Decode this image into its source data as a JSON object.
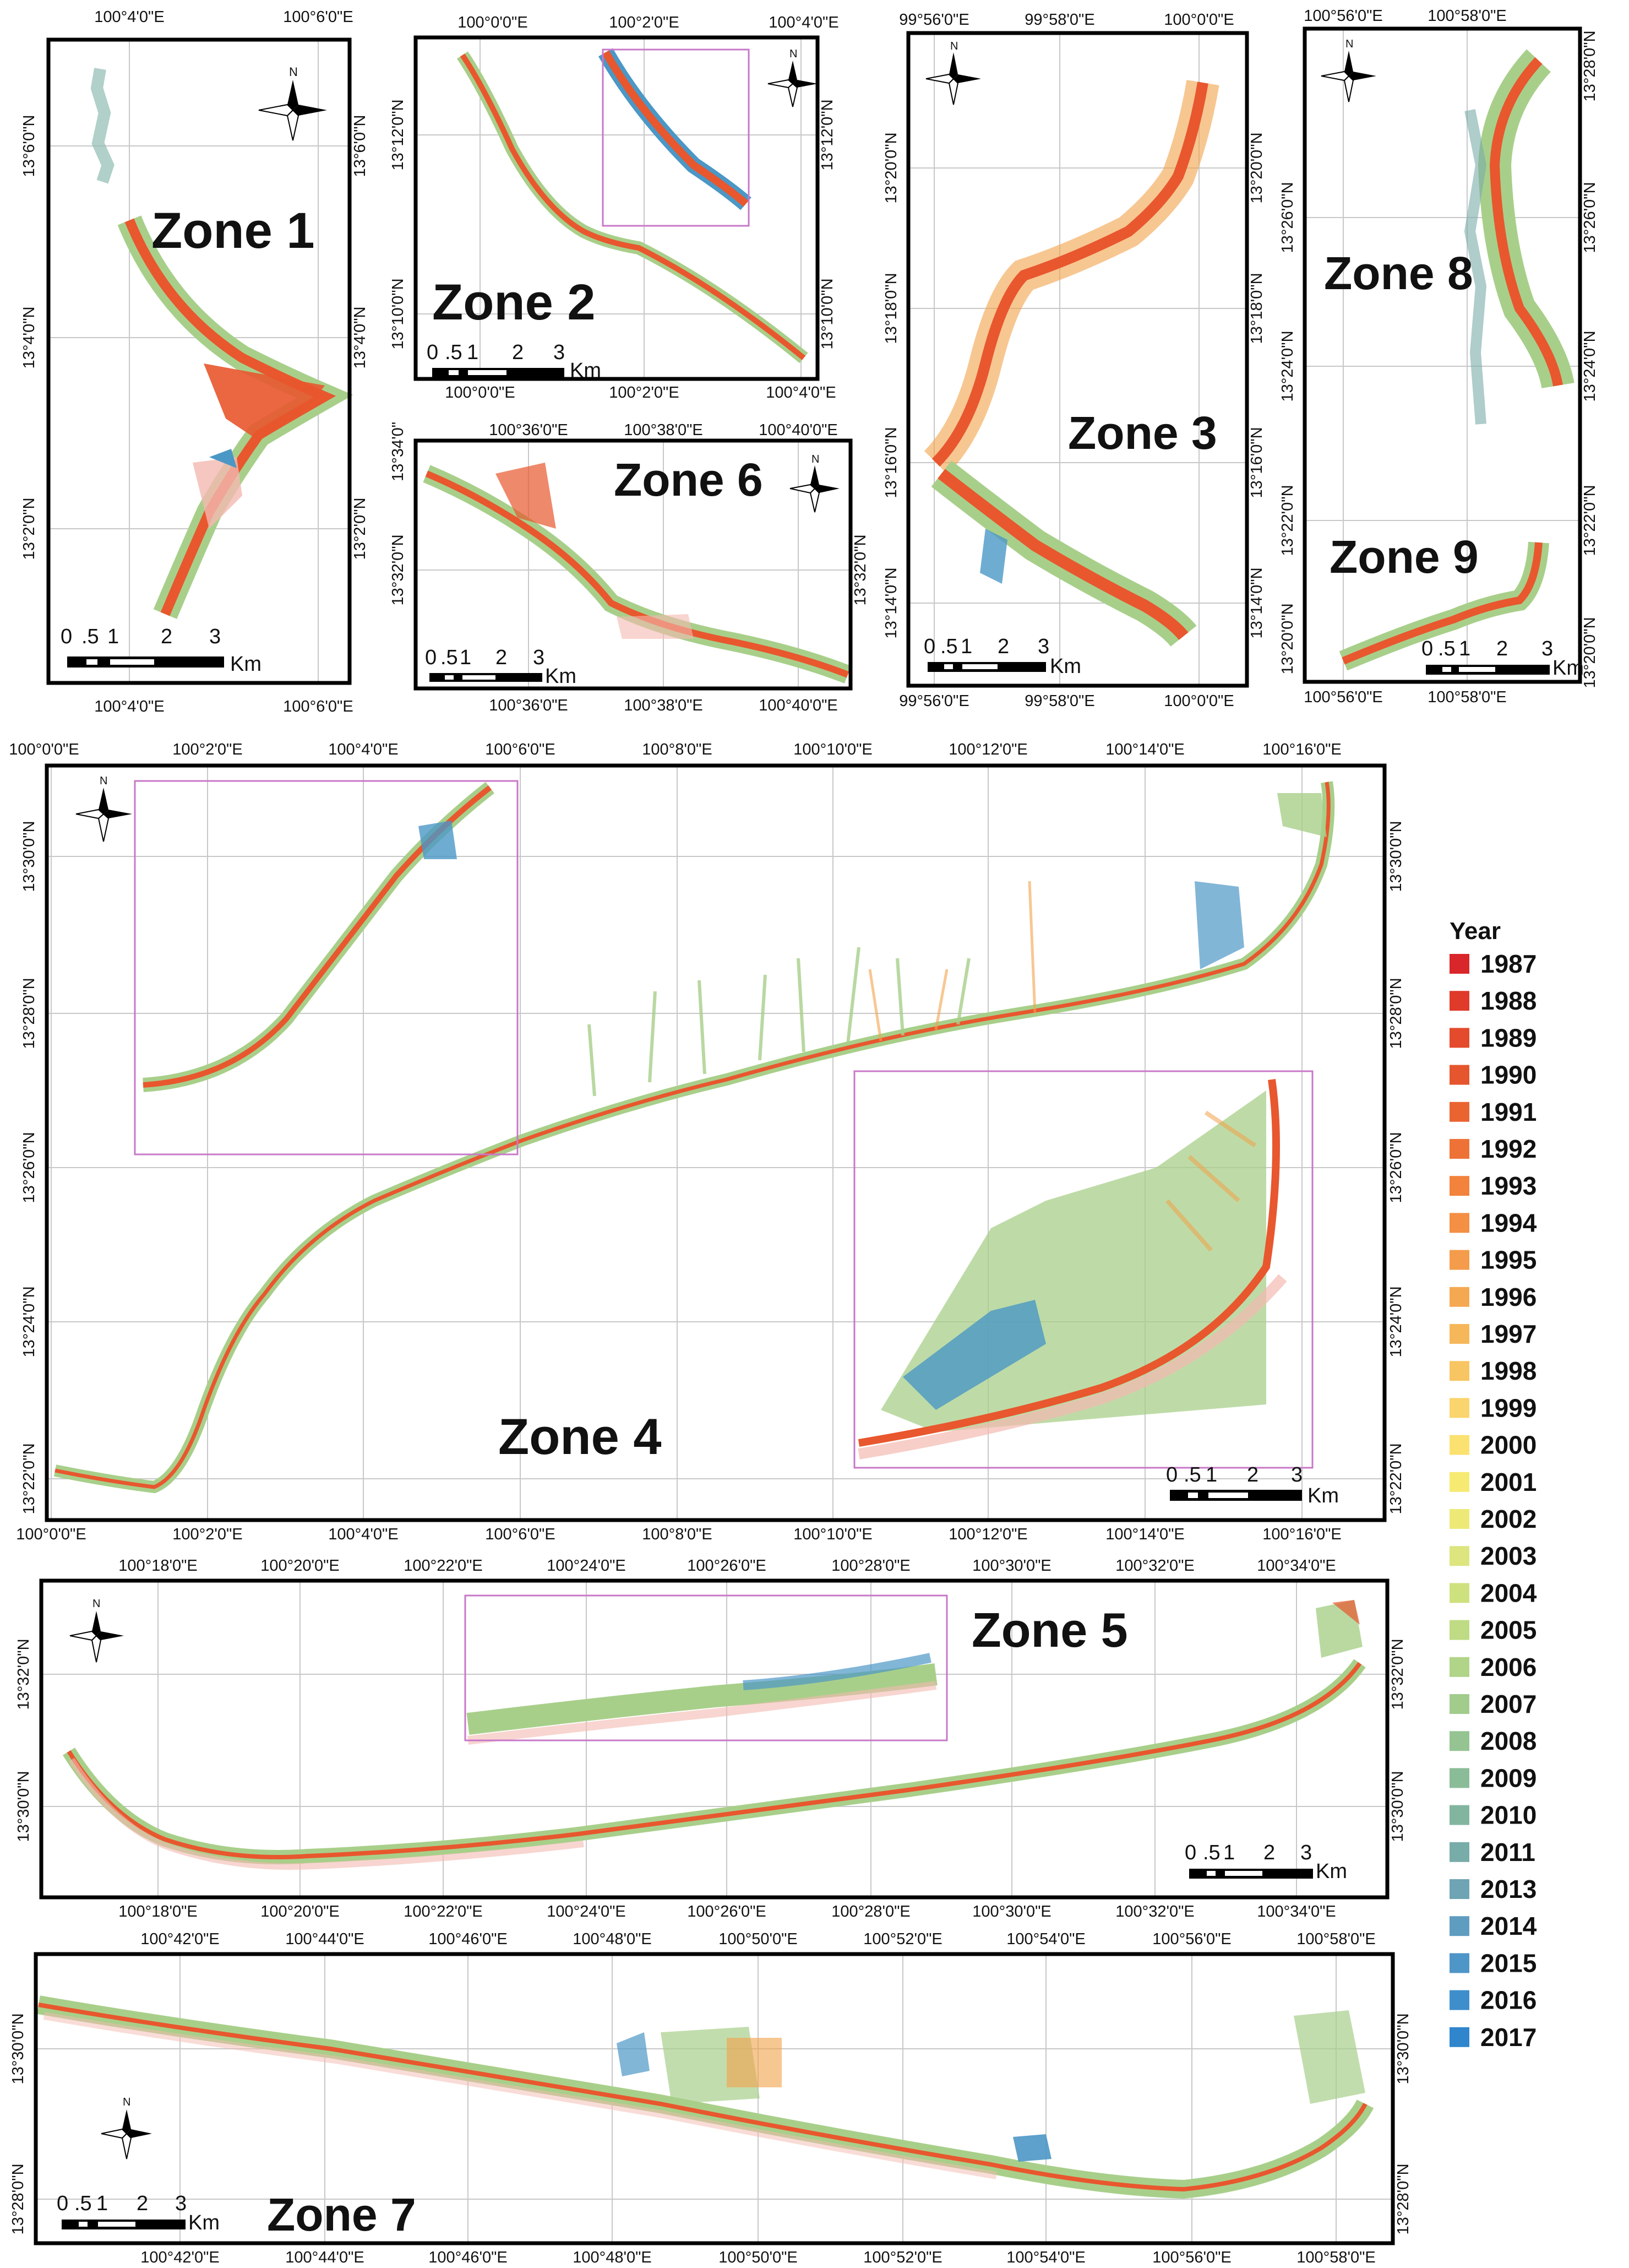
{
  "figure": {
    "panels": [
      {
        "id": "z1",
        "zone_label": "Zone 1",
        "top_ticks": [
          "100°4'0\"E",
          "100°6'0\"E"
        ],
        "bottom_ticks": [
          "100°4'0\"E",
          "100°6'0\"E"
        ],
        "left_ticks": [
          "13°6'0\"N",
          "13°4'0\"N",
          "13°2'0\"N"
        ],
        "right_ticks": [
          "13°6'0\"N",
          "13°4'0\"N",
          "13°2'0\"N"
        ],
        "scale": [
          "0",
          ".5",
          "1",
          "2",
          "3",
          "Km"
        ]
      },
      {
        "id": "z2",
        "zone_label": "Zone 2",
        "top_ticks": [
          "100°0'0\"E",
          "100°2'0\"E",
          "100°4'0\"E"
        ],
        "bottom_ticks": [
          "100°0'0\"E",
          "100°2'0\"E",
          "100°4'0\"E"
        ],
        "left_ticks": [
          "13°12'0\"N",
          "13°10'0\"N"
        ],
        "right_ticks": [
          "13°12'0\"N",
          "13°10'0\"N"
        ],
        "scale": [
          "0",
          ".5",
          "1",
          "2",
          "3",
          "Km"
        ]
      },
      {
        "id": "z6",
        "zone_label": "Zone 6",
        "top_ticks": [
          "100°36'0\"E",
          "100°38'0\"E",
          "100°40'0\"E"
        ],
        "bottom_ticks": [
          "100°36'0\"E",
          "100°38'0\"E",
          "100°40'0\"E"
        ],
        "left_ticks": [
          "13°34'0\"",
          "13°32'0\"N"
        ],
        "right_ticks": [
          "13°32'0\"N"
        ],
        "scale": [
          "0",
          ".5",
          "1",
          "2",
          "3",
          "Km"
        ]
      },
      {
        "id": "z3",
        "zone_label": "Zone 3",
        "top_ticks": [
          "99°56'0\"E",
          "99°58'0\"E",
          "100°0'0\"E"
        ],
        "bottom_ticks": [
          "99°56'0\"E",
          "99°58'0\"E",
          "100°0'0\"E"
        ],
        "left_ticks": [
          "13°20'0\"N",
          "13°18'0\"N",
          "13°16'0\"N",
          "13°14'0\"N"
        ],
        "right_ticks": [
          "13°20'0\"N",
          "13°18'0\"N",
          "13°16'0\"N",
          "13°14'0\"N"
        ],
        "scale": [
          "0",
          ".5",
          "1",
          "2",
          "3",
          "Km"
        ]
      },
      {
        "id": "z8",
        "zone_label": "Zone 8",
        "zone_label_b": "Zone 9",
        "top_ticks": [
          "100°56'0\"E",
          "100°58'0\"E"
        ],
        "bottom_ticks": [
          "100°56'0\"E",
          "100°58'0\"E"
        ],
        "left_ticks": [
          "13°26'0\"N",
          "13°24'0\"N",
          "13°22'0\"N",
          "13°20'0\"N"
        ],
        "right_ticks": [
          "13°28'0\"N",
          "13°26'0\"N",
          "13°24'0\"N",
          "13°22'0\"N",
          "13°20'0\"N"
        ],
        "scale": [
          "0",
          ".5",
          "1",
          "2",
          "3",
          "Km"
        ]
      },
      {
        "id": "z4",
        "zone_label": "Zone 4",
        "top_ticks": [
          "100°0'0\"E",
          "100°2'0\"E",
          "100°4'0\"E",
          "100°6'0\"E",
          "100°8'0\"E",
          "100°10'0\"E",
          "100°12'0\"E",
          "100°14'0\"E",
          "100°16'0\"E"
        ],
        "bottom_ticks": [
          "100°0'0\"E",
          "100°2'0\"E",
          "100°4'0\"E",
          "100°6'0\"E",
          "100°8'0\"E",
          "100°10'0\"E",
          "100°12'0\"E",
          "100°14'0\"E",
          "100°16'0\"E"
        ],
        "left_ticks": [
          "13°30'0\"N",
          "13°28'0\"N",
          "13°26'0\"N",
          "13°24'0\"N",
          "13°22'0\"N"
        ],
        "right_ticks": [
          "13°30'0\"N",
          "13°28'0\"N",
          "13°26'0\"N",
          "13°24'0\"N",
          "13°22'0\"N"
        ],
        "scale": [
          "0",
          ".5",
          "1",
          "2",
          "3",
          "Km"
        ]
      },
      {
        "id": "z5",
        "zone_label": "Zone 5",
        "top_ticks": [
          "100°18'0\"E",
          "100°20'0\"E",
          "100°22'0\"E",
          "100°24'0\"E",
          "100°26'0\"E",
          "100°28'0\"E",
          "100°30'0\"E",
          "100°32'0\"E",
          "100°34'0\"E"
        ],
        "bottom_ticks": [
          "100°18'0\"E",
          "100°20'0\"E",
          "100°22'0\"E",
          "100°24'0\"E",
          "100°26'0\"E",
          "100°28'0\"E",
          "100°30'0\"E",
          "100°32'0\"E",
          "100°34'0\"E"
        ],
        "left_ticks": [
          "13°32'0\"N",
          "13°30'0\"N"
        ],
        "right_ticks": [
          "13°32'0\"N",
          "13°30'0\"N"
        ],
        "scale": [
          "0",
          ".5",
          "1",
          "2",
          "3",
          "Km"
        ]
      },
      {
        "id": "z7",
        "zone_label": "Zone 7",
        "top_ticks": [
          "100°42'0\"E",
          "100°44'0\"E",
          "100°46'0\"E",
          "100°48'0\"E",
          "100°50'0\"E",
          "100°52'0\"E",
          "100°54'0\"E",
          "100°56'0\"E",
          "100°58'0\"E"
        ],
        "bottom_ticks": [
          "100°42'0\"E",
          "100°44'0\"E",
          "100°46'0\"E",
          "100°48'0\"E",
          "100°50'0\"E",
          "100°52'0\"E",
          "100°54'0\"E",
          "100°56'0\"E",
          "100°58'0\"E"
        ],
        "left_ticks": [
          "13°30'0\"N",
          "13°28'0\"N"
        ],
        "right_ticks": [
          "13°30'0\"N",
          "13°28'0\"N"
        ],
        "scale": [
          "0",
          ".5",
          "1",
          "2",
          "3",
          "Km"
        ]
      }
    ],
    "north_label": "N",
    "legend": {
      "title": "Year",
      "years": [
        "1987",
        "1988",
        "1989",
        "1990",
        "1991",
        "1992",
        "1993",
        "1994",
        "1995",
        "1996",
        "1997",
        "1998",
        "1999",
        "2000",
        "2001",
        "2002",
        "2003",
        "2004",
        "2005",
        "2006",
        "2007",
        "2008",
        "2009",
        "2010",
        "2011",
        "2013",
        "2014",
        "2015",
        "2016",
        "2017"
      ],
      "colors": [
        "#d9262a",
        "#df3a2a",
        "#e44a2c",
        "#e6562e",
        "#ea6431",
        "#ee7236",
        "#f2823c",
        "#f48f44",
        "#f49c4b",
        "#f5a852",
        "#f6b75a",
        "#f8c563",
        "#fad46c",
        "#fbe170",
        "#f6ea72",
        "#ede976",
        "#dde57e",
        "#cee17f",
        "#bfdb83",
        "#b0d488",
        "#a1cc8c",
        "#95c492",
        "#8bbc98",
        "#82b5a0",
        "#78aca8",
        "#6ea4b4",
        "#5f9dc0",
        "#4f96c8",
        "#3f8ecc",
        "#2f86cd"
      ]
    },
    "coast_colors": {
      "old": "#e8572e",
      "mid": "#f2a24a",
      "young": "#a8cf8a",
      "recent": "#4b97c6",
      "faint": "#f3b9b0"
    }
  }
}
